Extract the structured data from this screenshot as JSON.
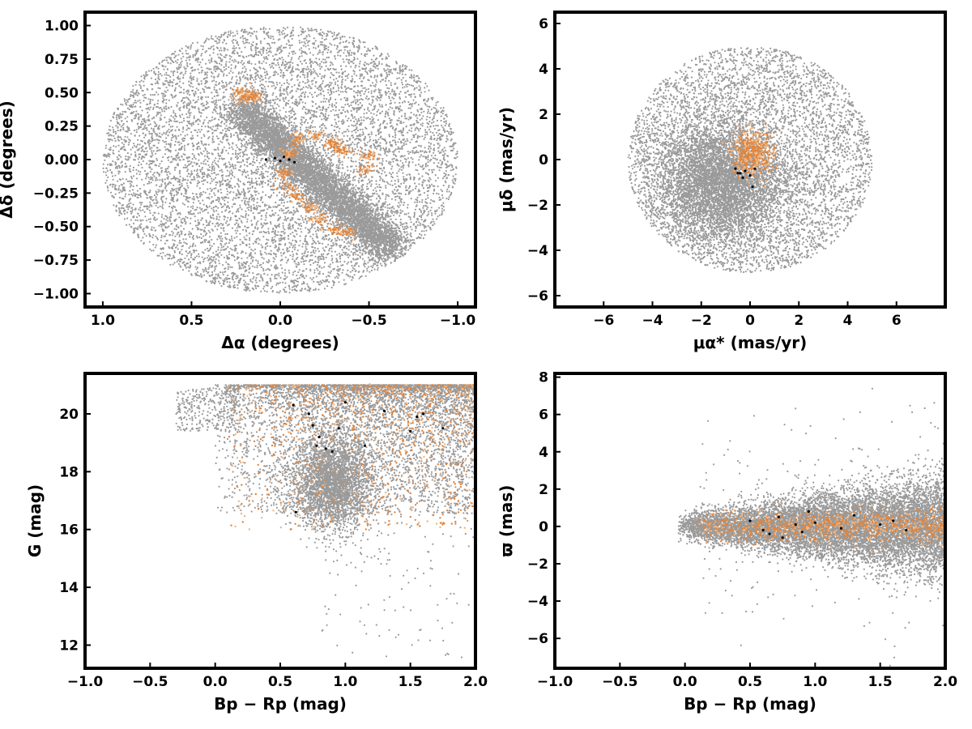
{
  "figure": {
    "layout": "2x2 grid",
    "colors": {
      "field": "#9a9a9a",
      "members": "#e0843c",
      "members_light": "#f2b27a",
      "core": "#000000",
      "frame": "#000000"
    }
  },
  "chart_data": [
    {
      "id": "sky",
      "type": "scatter",
      "xlabel": "Δα (degrees)",
      "ylabel": "Δδ (degrees)",
      "xlim": [
        1.1,
        -1.1
      ],
      "ylim": [
        -1.1,
        1.1
      ],
      "xticks": [
        1.0,
        0.5,
        0.0,
        -0.5,
        -1.0
      ],
      "xtick_labels": [
        "1.0",
        "0.5",
        "0.0",
        "−0.5",
        "−1.0"
      ],
      "yticks": [
        -1.0,
        -0.75,
        -0.5,
        -0.25,
        0.0,
        0.25,
        0.5,
        0.75,
        1.0
      ],
      "ytick_labels": [
        "−1.00",
        "−0.75",
        "−0.50",
        "−0.25",
        "0.00",
        "0.25",
        "0.50",
        "0.75",
        "1.00"
      ],
      "series": [
        {
          "role": "field",
          "color": "#9a9a9a",
          "distribution": "uniform disk radius 1.0 deg centred at (0,0), plus a dense diagonal band from (0.2,0.35) to (-0.55,-0.6) with a sparse gap",
          "approx_count": 20000
        },
        {
          "role": "members",
          "color": "#e0843c",
          "points": [
            [
              0.22,
              0.5
            ],
            [
              0.15,
              0.48
            ],
            [
              0.2,
              0.45
            ],
            [
              -0.05,
              0.05
            ],
            [
              -0.1,
              0.15
            ],
            [
              -0.2,
              0.18
            ],
            [
              -0.3,
              0.12
            ],
            [
              -0.35,
              0.07
            ],
            [
              -0.5,
              0.02
            ],
            [
              -0.48,
              -0.08
            ],
            [
              -0.02,
              -0.1
            ],
            [
              -0.05,
              -0.2
            ],
            [
              -0.1,
              -0.28
            ],
            [
              -0.18,
              -0.36
            ],
            [
              -0.22,
              -0.44
            ],
            [
              -0.3,
              -0.52
            ],
            [
              -0.38,
              -0.54
            ]
          ]
        },
        {
          "role": "core",
          "color": "#000000",
          "points": [
            [
              0.08,
              0.0
            ],
            [
              0.03,
              0.01
            ],
            [
              -0.02,
              0.02
            ],
            [
              -0.05,
              0.0
            ],
            [
              -0.08,
              -0.02
            ],
            [
              0.0,
              -0.01
            ]
          ]
        }
      ]
    },
    {
      "id": "pm",
      "type": "scatter",
      "xlabel": "μα* (mas/yr)",
      "ylabel": "μδ (mas/yr)",
      "xlim": [
        -8,
        8
      ],
      "ylim": [
        -6.5,
        6.5
      ],
      "xticks": [
        -6,
        -4,
        -2,
        0,
        2,
        4,
        6
      ],
      "xtick_labels": [
        "−6",
        "−4",
        "−2",
        "0",
        "2",
        "4",
        "6"
      ],
      "yticks": [
        -6,
        -4,
        -2,
        0,
        2,
        4,
        6
      ],
      "ytick_labels": [
        "−6",
        "−4",
        "−2",
        "0",
        "2",
        "4",
        "6"
      ],
      "series": [
        {
          "role": "field",
          "color": "#9a9a9a",
          "distribution": "disk radius 5 mas/yr centred at (0,0) with dense core near (-1,-1)",
          "approx_count": 20000
        },
        {
          "role": "members",
          "color": "#e0843c",
          "center": [
            0.1,
            0.3
          ],
          "spread": [
            0.7,
            0.8
          ]
        },
        {
          "role": "core",
          "color": "#000000",
          "points": [
            [
              -0.6,
              -0.4
            ],
            [
              -0.4,
              -0.6
            ],
            [
              -0.2,
              -0.5
            ],
            [
              0.0,
              -0.7
            ],
            [
              0.1,
              -1.2
            ],
            [
              -0.3,
              -0.8
            ],
            [
              0.2,
              -0.4
            ],
            [
              -0.5,
              -0.6
            ]
          ]
        }
      ]
    },
    {
      "id": "cmd",
      "type": "scatter",
      "xlabel": "Bp − Rp (mag)",
      "ylabel": "G (mag)",
      "xlim": [
        -1.0,
        2.0
      ],
      "ylim": [
        11.2,
        21.4
      ],
      "xticks": [
        -1.0,
        -0.5,
        0.0,
        0.5,
        1.0,
        1.5,
        2.0
      ],
      "xtick_labels": [
        "−1.0",
        "−0.5",
        "0.0",
        "0.5",
        "1.0",
        "1.5",
        "2.0"
      ],
      "yticks": [
        12,
        14,
        16,
        18,
        20
      ],
      "ytick_labels": [
        "12",
        "14",
        "16",
        "18",
        "20"
      ],
      "series": [
        {
          "role": "field",
          "color": "#9a9a9a",
          "distribution": "dense region Bp-Rp 0.0–2.0, G 16.5–21, dense clump near (0.9,17.5)",
          "approx_count": 18000
        },
        {
          "role": "members",
          "color": "#e0843c",
          "distribution": "Bp-Rp 0.1–2.0, G 16–21"
        },
        {
          "role": "core",
          "color": "#000000",
          "points": [
            [
              0.6,
              20.3
            ],
            [
              0.72,
              20.0
            ],
            [
              0.75,
              19.6
            ],
            [
              0.8,
              19.2
            ],
            [
              0.85,
              18.8
            ],
            [
              0.95,
              19.5
            ],
            [
              1.0,
              20.4
            ],
            [
              1.15,
              18.9
            ],
            [
              1.3,
              20.1
            ],
            [
              1.5,
              19.4
            ],
            [
              1.6,
              20.0
            ],
            [
              0.9,
              18.7
            ],
            [
              1.75,
              19.5
            ],
            [
              0.62,
              16.6
            ],
            [
              1.55,
              19.9
            ],
            [
              0.78,
              18.9
            ]
          ]
        }
      ]
    },
    {
      "id": "parallax",
      "type": "scatter",
      "xlabel": "Bp − Rp (mag)",
      "ylabel": "ϖ (mas)",
      "xlim": [
        -1.0,
        2.0
      ],
      "ylim": [
        -7.6,
        8.2
      ],
      "xticks": [
        -1.0,
        -0.5,
        0.0,
        0.5,
        1.0,
        1.5,
        2.0
      ],
      "xtick_labels": [
        "−1.0",
        "−0.5",
        "0.0",
        "0.5",
        "1.0",
        "1.5",
        "2.0"
      ],
      "yticks": [
        -6,
        -4,
        -2,
        0,
        2,
        4,
        6,
        8
      ],
      "ytick_labels": [
        "−6",
        "−4",
        "−2",
        "0",
        "2",
        "4",
        "6",
        "8"
      ],
      "series": [
        {
          "role": "field",
          "color": "#9a9a9a",
          "distribution": "band ϖ ≈ 0 ± 1.5, Bp-Rp 0.0–2.0, widening to the red",
          "approx_count": 18000
        },
        {
          "role": "members",
          "color": "#e0843c",
          "distribution": "ϖ ≈ 0 ± 0.6, Bp-Rp 0.1–2.0"
        },
        {
          "role": "core",
          "color": "#000000",
          "points": [
            [
              0.5,
              0.3
            ],
            [
              0.6,
              -0.2
            ],
            [
              0.72,
              0.5
            ],
            [
              0.75,
              -0.6
            ],
            [
              0.85,
              0.1
            ],
            [
              0.9,
              -0.3
            ],
            [
              1.0,
              0.2
            ],
            [
              1.2,
              -0.1
            ],
            [
              1.3,
              0.6
            ],
            [
              1.5,
              0.1
            ],
            [
              1.6,
              0.3
            ],
            [
              1.7,
              -0.2
            ],
            [
              0.95,
              0.8
            ],
            [
              0.65,
              -0.4
            ]
          ]
        }
      ]
    }
  ]
}
